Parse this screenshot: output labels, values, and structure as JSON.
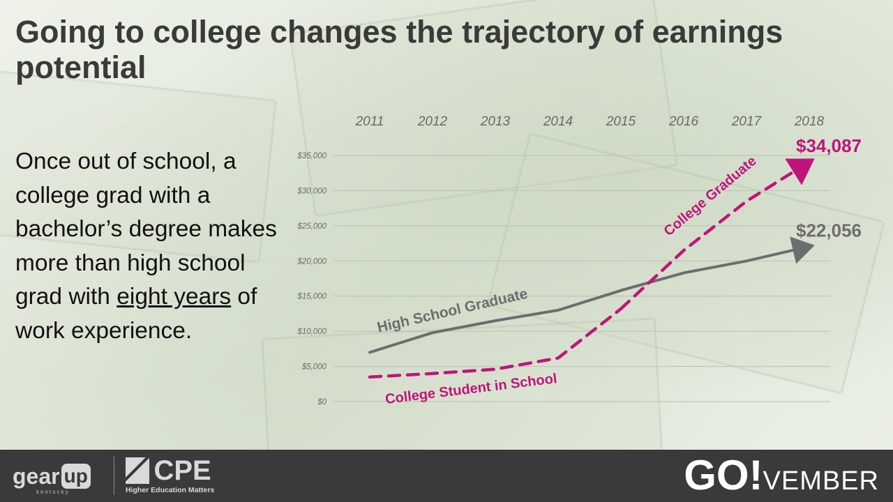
{
  "slide": {
    "title": "Going to college changes the trajectory of earnings potential",
    "body_parts": {
      "before": "Once out of school, a college grad with a bachelor’s degree makes more than high school grad with ",
      "underlined": "eight years",
      "after": " of work experience."
    }
  },
  "footer": {
    "gear_left": "gear",
    "gear_box": "up",
    "gear_sub": "kentucky",
    "cpe_word": "CPE",
    "cpe_tagline": "Higher Education Matters",
    "go_big": "GO!",
    "go_rest": "VEMBER"
  },
  "colors": {
    "high_school": "#6d6d6d",
    "college": "#c0147a",
    "title": "#3a3a3a",
    "footer_bg": "#3a3a3a"
  },
  "chart_data": {
    "type": "line",
    "x": [
      "2011",
      "2012",
      "2013",
      "2014",
      "2015",
      "2016",
      "2017",
      "2018"
    ],
    "y_ticks": [
      "$35,000",
      "$30,000",
      "$25,000",
      "$20,000",
      "$15,000",
      "$10,000",
      "$5,000",
      "$0"
    ],
    "ylim": [
      0,
      35000
    ],
    "grid": true,
    "series": [
      {
        "name": "High School Graduate",
        "style": "solid",
        "color": "#6d6d6d",
        "values": [
          7000,
          9800,
          11500,
          13000,
          15800,
          18300,
          20000,
          22056
        ],
        "end_label": "$22,056"
      },
      {
        "name": "College Student in School",
        "style": "dashed",
        "color": "#c0147a",
        "values": [
          3500,
          4000,
          4600,
          6200,
          13200,
          null,
          null,
          null
        ],
        "end_label": ""
      },
      {
        "name": "College Graduate",
        "style": "dashed",
        "color": "#c0147a",
        "values": [
          null,
          null,
          null,
          null,
          13200,
          21500,
          28500,
          34087
        ],
        "end_label": "$34,087"
      }
    ]
  }
}
